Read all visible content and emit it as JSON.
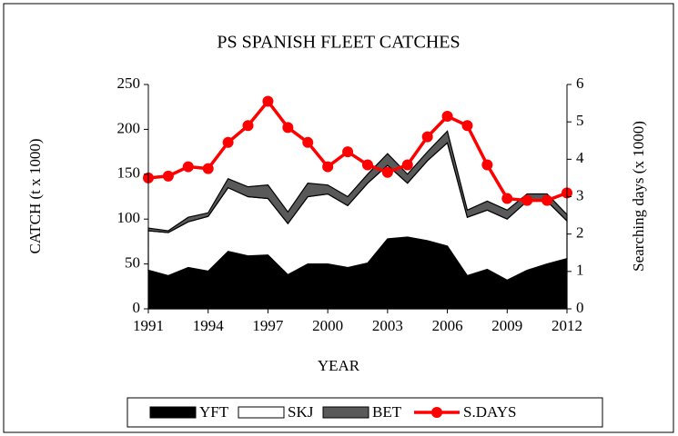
{
  "chart_data": {
    "type": "area",
    "stacked": true,
    "title": "PS SPANISH FLEET CATCHES",
    "x_label": "YEAR",
    "y_label": "CATCH (t x 1000)",
    "y2_label": "Searching days (x 1000)",
    "x": [
      1991,
      1992,
      1993,
      1994,
      1995,
      1996,
      1997,
      1998,
      1999,
      2000,
      2001,
      2002,
      2003,
      2004,
      2005,
      2006,
      2007,
      2008,
      2009,
      2010,
      2011,
      2012
    ],
    "xlim": [
      1991,
      2012
    ],
    "xticks": [
      1991,
      1994,
      1997,
      2000,
      2003,
      2006,
      2009,
      2012
    ],
    "ylim": [
      0,
      250
    ],
    "yticks": [
      0,
      50,
      100,
      150,
      200,
      250
    ],
    "y2lim": [
      0,
      6
    ],
    "y2ticks": [
      0,
      1,
      2,
      3,
      4,
      5,
      6
    ],
    "legend": "bottom",
    "series": [
      {
        "name": "YFT",
        "color": "#000000",
        "values": [
          43,
          37,
          46,
          42,
          64,
          59,
          60,
          38,
          50,
          50,
          46,
          51,
          78,
          80,
          76,
          70,
          37,
          44,
          32,
          43,
          50,
          56
        ]
      },
      {
        "name": "SKJ",
        "color": "#ffffff",
        "values": [
          44,
          48,
          51,
          61,
          71,
          66,
          63,
          57,
          75,
          78,
          69,
          89,
          82,
          60,
          89,
          115,
          65,
          66,
          68,
          77,
          70,
          42
        ]
      },
      {
        "name": "BET",
        "color": "#595959",
        "values": [
          3,
          2,
          5,
          4,
          10,
          11,
          15,
          13,
          15,
          10,
          10,
          10,
          13,
          10,
          10,
          13,
          8,
          10,
          10,
          8,
          8,
          7
        ]
      },
      {
        "name": "S.DAYS",
        "type": "line",
        "axis": "y2",
        "color": "#ff0000",
        "values": [
          3.5,
          3.55,
          3.8,
          3.75,
          4.45,
          4.9,
          5.55,
          4.85,
          4.45,
          3.8,
          4.2,
          3.85,
          3.65,
          3.85,
          4.6,
          5.15,
          4.9,
          3.85,
          2.95,
          2.9,
          2.9,
          3.1
        ]
      }
    ]
  }
}
